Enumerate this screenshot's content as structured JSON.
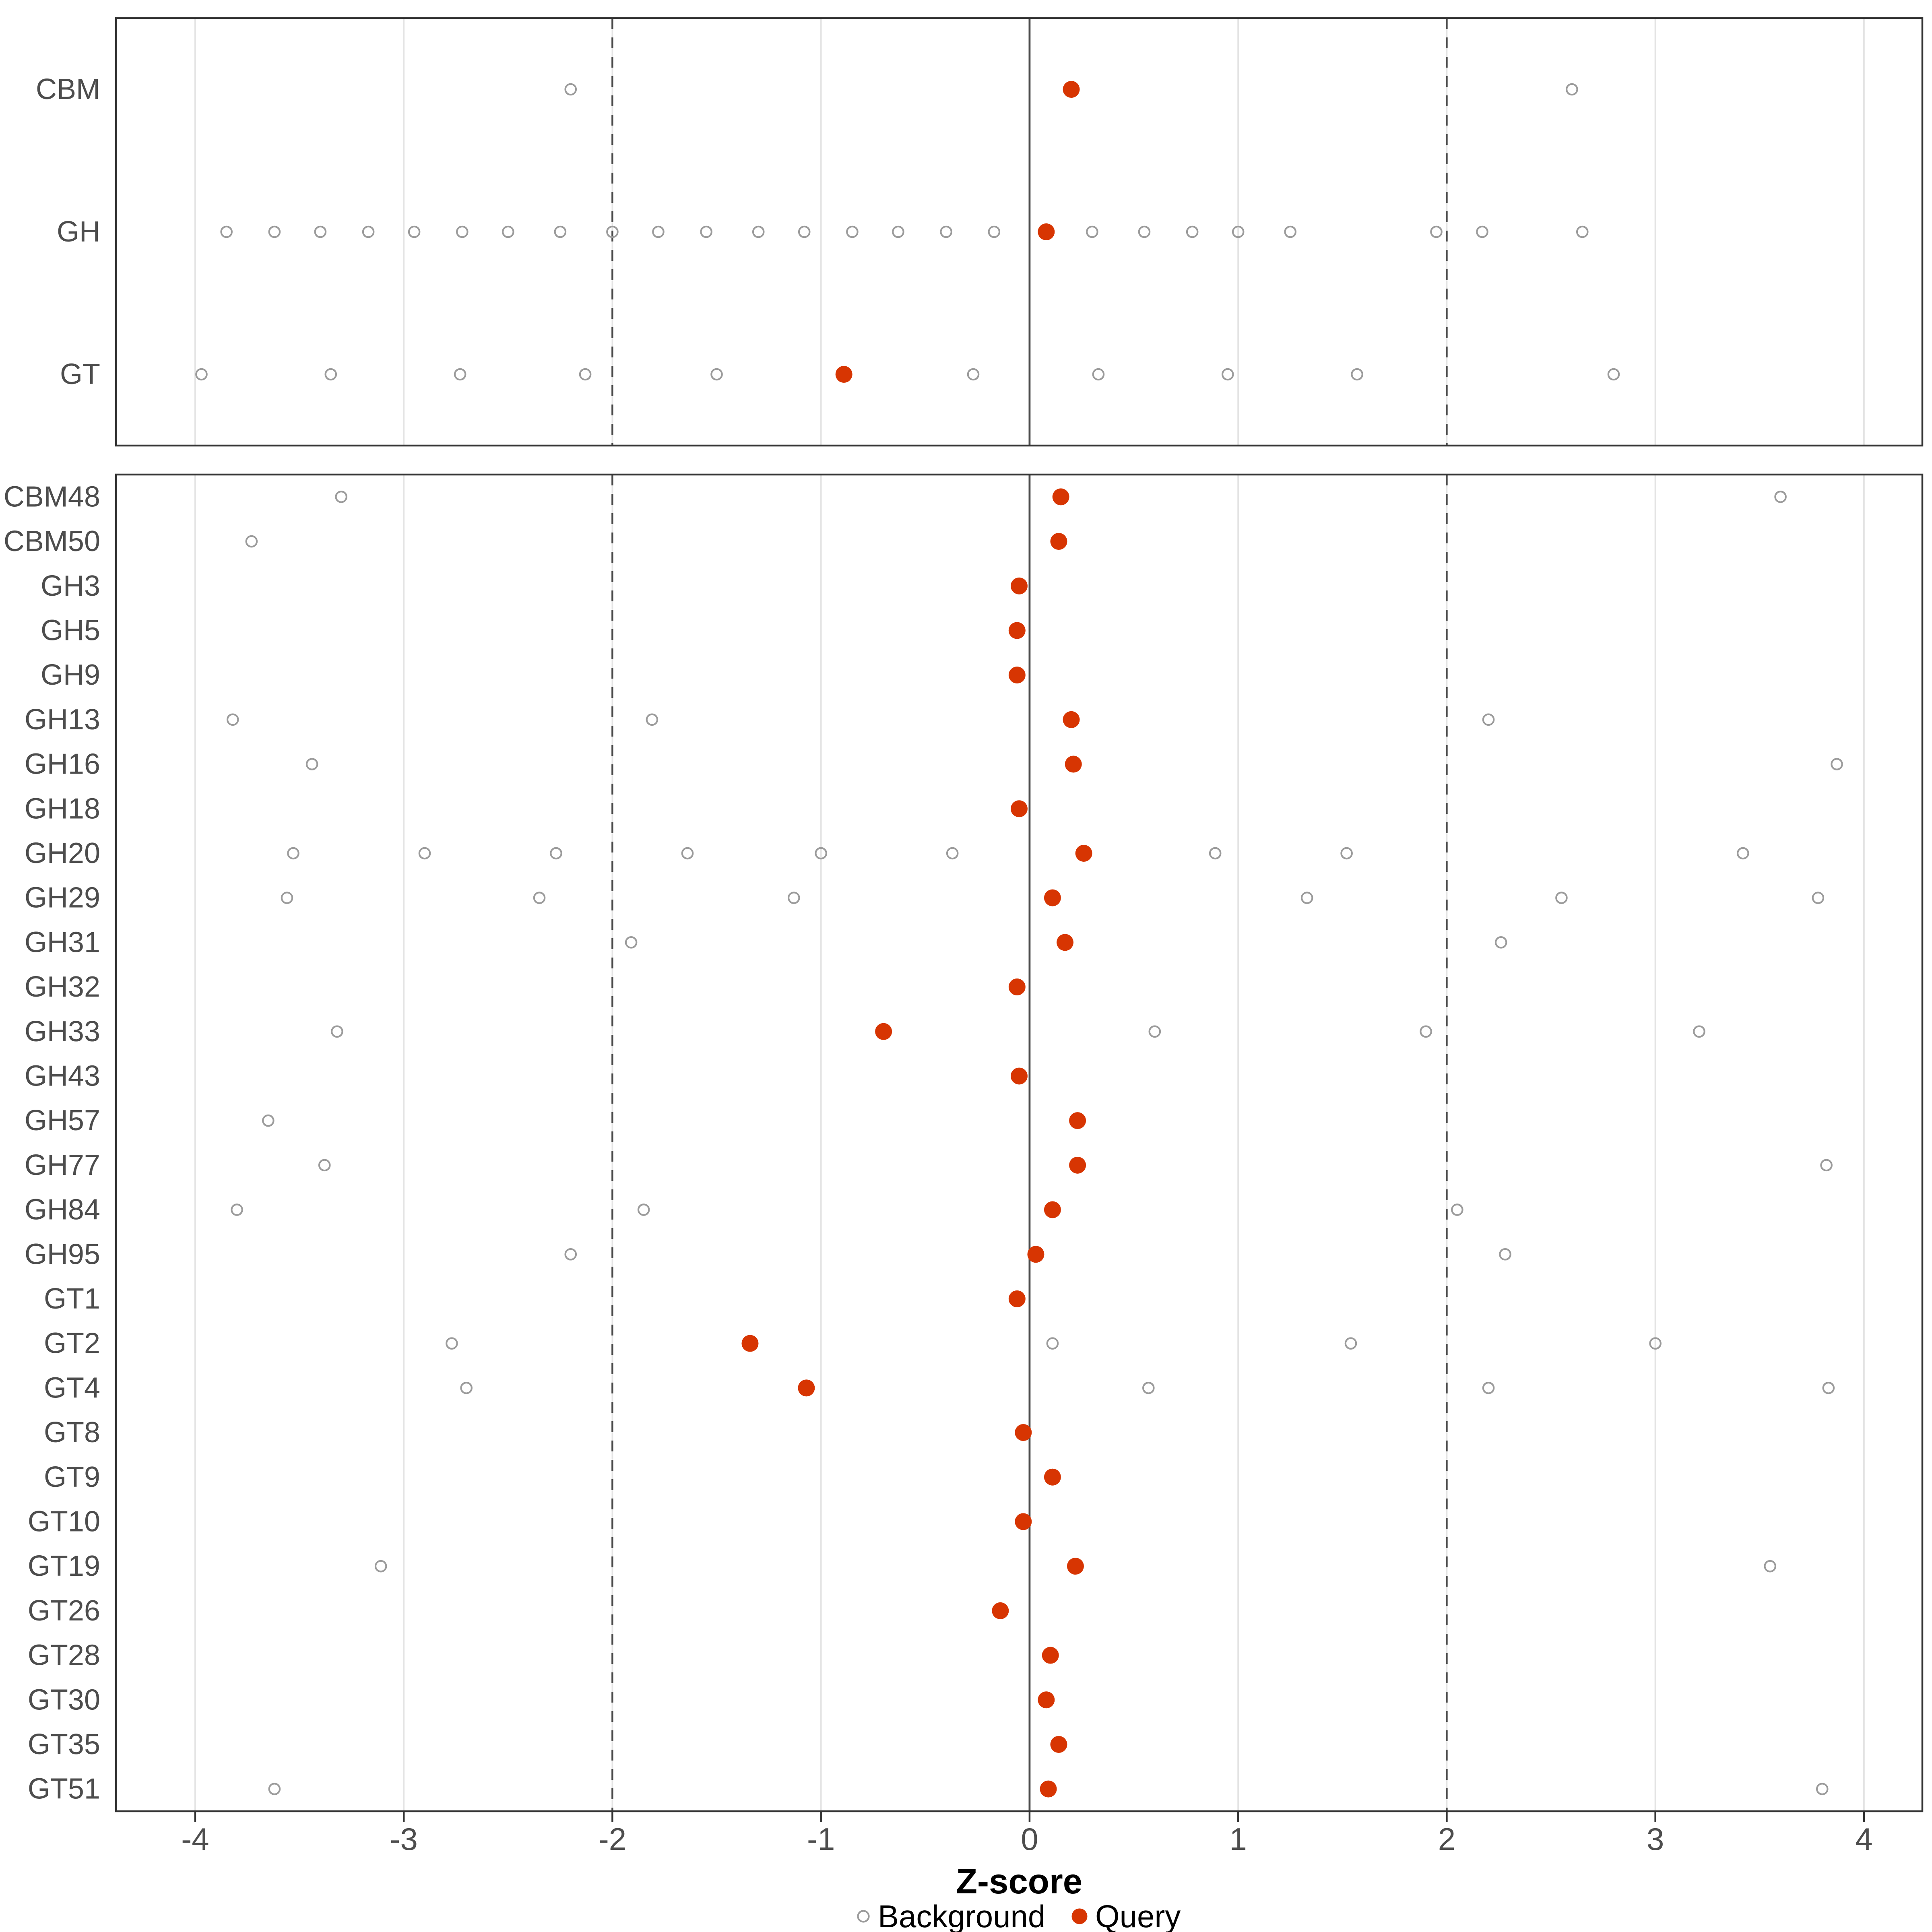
{
  "chart_data": {
    "type": "scatter",
    "title": "",
    "xlabel": "Z-score",
    "ylabel": "",
    "x_ticks": [
      -4,
      -3,
      -2,
      -1,
      0,
      1,
      2,
      3,
      4
    ],
    "x_domain": [
      -4.38,
      4.28
    ],
    "grid": "vertical-major-only",
    "reference_lines": {
      "solid": [
        0
      ],
      "dashed": [
        -2,
        2
      ]
    },
    "legend": {
      "position": "bottom",
      "background_label": "Background",
      "query_label": "Query"
    },
    "colors": {
      "background_stroke": "#9b9b9b",
      "query_fill": "#D73502",
      "grid": "#e4e4e4",
      "axis_text": "#4d4d4d",
      "panel_border": "#333333",
      "ref_line": "#4a4a4a"
    },
    "panels": [
      {
        "name": "class-summary",
        "rows": [
          {
            "label": "CBM",
            "background": [
              -2.2,
              2.6
            ],
            "query": 0.2
          },
          {
            "label": "GH",
            "background": [
              -3.85,
              -3.62,
              -3.4,
              -3.17,
              -2.95,
              -2.72,
              -2.5,
              -2.25,
              -2.0,
              -1.78,
              -1.55,
              -1.3,
              -1.08,
              -0.85,
              -0.63,
              -0.4,
              -0.17,
              0.3,
              0.55,
              0.78,
              1.0,
              1.25,
              1.95,
              2.17,
              2.65
            ],
            "query": 0.08
          },
          {
            "label": "GT",
            "background": [
              -3.97,
              -3.35,
              -2.73,
              -2.13,
              -1.5,
              -0.27,
              0.33,
              0.95,
              1.57,
              2.8
            ],
            "query": -0.89
          }
        ]
      },
      {
        "name": "families",
        "rows": [
          {
            "label": "CBM48",
            "background": [
              -3.3,
              3.6
            ],
            "query": 0.15
          },
          {
            "label": "CBM50",
            "background": [
              -3.73
            ],
            "query": 0.14
          },
          {
            "label": "GH3",
            "background": [],
            "query": -0.05
          },
          {
            "label": "GH5",
            "background": [],
            "query": -0.06
          },
          {
            "label": "GH9",
            "background": [],
            "query": -0.06
          },
          {
            "label": "GH13",
            "background": [
              -3.82,
              -1.81,
              2.2
            ],
            "query": 0.2
          },
          {
            "label": "GH16",
            "background": [
              -3.44,
              3.87
            ],
            "query": 0.21
          },
          {
            "label": "GH18",
            "background": [],
            "query": -0.05
          },
          {
            "label": "GH20",
            "background": [
              -3.53,
              -2.9,
              -2.27,
              -1.64,
              -1.0,
              -0.37,
              0.89,
              1.52,
              3.42
            ],
            "query": 0.26
          },
          {
            "label": "GH29",
            "background": [
              -3.56,
              -2.35,
              -1.13,
              1.33,
              2.55,
              3.78
            ],
            "query": 0.11
          },
          {
            "label": "GH31",
            "background": [
              -1.91,
              2.26
            ],
            "query": 0.17
          },
          {
            "label": "GH32",
            "background": [],
            "query": -0.06
          },
          {
            "label": "GH33",
            "background": [
              -3.32,
              0.6,
              1.9,
              3.21
            ],
            "query": -0.7
          },
          {
            "label": "GH43",
            "background": [],
            "query": -0.05
          },
          {
            "label": "GH57",
            "background": [
              -3.65
            ],
            "query": 0.23
          },
          {
            "label": "GH77",
            "background": [
              -3.38,
              3.82
            ],
            "query": 0.23
          },
          {
            "label": "GH84",
            "background": [
              -3.8,
              -1.85,
              2.05
            ],
            "query": 0.11
          },
          {
            "label": "GH95",
            "background": [
              -2.2,
              2.28
            ],
            "query": 0.03
          },
          {
            "label": "GT1",
            "background": [],
            "query": -0.06
          },
          {
            "label": "GT2",
            "background": [
              -2.77,
              0.11,
              1.54,
              3.0
            ],
            "query": -1.34
          },
          {
            "label": "GT4",
            "background": [
              -2.7,
              0.57,
              2.2,
              3.83
            ],
            "query": -1.07
          },
          {
            "label": "GT8",
            "background": [],
            "query": -0.03
          },
          {
            "label": "GT9",
            "background": [],
            "query": 0.11
          },
          {
            "label": "GT10",
            "background": [],
            "query": -0.03
          },
          {
            "label": "GT19",
            "background": [
              -3.11,
              3.55
            ],
            "query": 0.22
          },
          {
            "label": "GT26",
            "background": [],
            "query": -0.14
          },
          {
            "label": "GT28",
            "background": [],
            "query": 0.1
          },
          {
            "label": "GT30",
            "background": [],
            "query": 0.08
          },
          {
            "label": "GT35",
            "background": [],
            "query": 0.14
          },
          {
            "label": "GT51",
            "background": [
              -3.62,
              3.8
            ],
            "query": 0.09
          }
        ]
      }
    ]
  }
}
